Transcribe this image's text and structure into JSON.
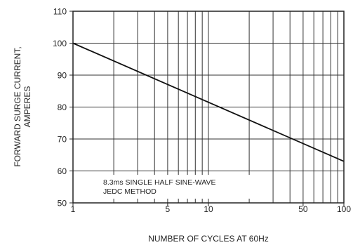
{
  "chart_data": {
    "type": "line",
    "x_scale": "log",
    "xlim": [
      1,
      100
    ],
    "ylim": [
      50,
      110
    ],
    "y_ticks": [
      50,
      60,
      70,
      80,
      90,
      100,
      110
    ],
    "x_tick_values": [
      1,
      5,
      10,
      50,
      100
    ],
    "x_tick_labels": [
      "1",
      "5",
      "10",
      "50",
      "100"
    ],
    "x_grid_values": [
      1,
      2,
      3,
      4,
      5,
      6,
      7,
      8,
      9,
      10,
      20,
      30,
      40,
      50,
      60,
      70,
      80,
      90,
      100
    ],
    "ylabel_line1": "FORWARD SURGE CURRENT,",
    "ylabel_line2": "AMPERES",
    "xlabel": "NUMBER OF CYCLES AT 60Hz",
    "annotation_line1": "8.3ms SINGLE HALF SINE-WAVE",
    "annotation_line2": "JEDC METHOD",
    "grid": true,
    "series": [
      {
        "x": [
          1,
          100
        ],
        "y": [
          100,
          63
        ]
      }
    ],
    "colors": {
      "line": "#111111",
      "grid": "#333333",
      "text": "#222222"
    }
  }
}
